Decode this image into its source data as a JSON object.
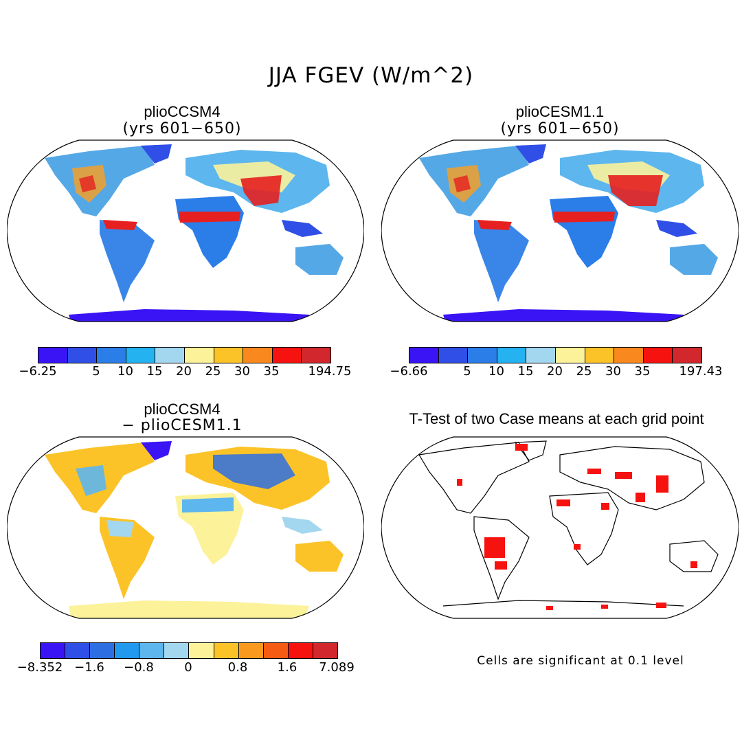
{
  "title": "JJA FGEV (W/m^2)",
  "panels": {
    "p1": {
      "title": "plioCCSM4",
      "subtitle": "(yrs 601−650)"
    },
    "p2": {
      "title": "plioCESM1.1",
      "subtitle": "(yrs 601−650)"
    },
    "p3": {
      "title": "plioCCSM4",
      "subtitle": "− plioCESM1.1"
    },
    "p4": {
      "title": "T-Test of two Case means at each grid point",
      "subtitle": ""
    }
  },
  "colorbars": {
    "cb1": {
      "colors": [
        "#3b14f5",
        "#2f4fe6",
        "#2b7de8",
        "#24b2f0",
        "#a3d7ef",
        "#fbf29a",
        "#fcc328",
        "#f9891e",
        "#f5120f",
        "#d2272c"
      ],
      "labels": [
        "−6.25",
        "5",
        "10",
        "15",
        "20",
        "25",
        "30",
        "35",
        "194.75"
      ]
    },
    "cb2": {
      "colors": [
        "#3b14f5",
        "#2f4fe6",
        "#2b7de8",
        "#24b2f0",
        "#a3d7ef",
        "#fbf29a",
        "#fcc328",
        "#f9891e",
        "#f5120f",
        "#d2272c"
      ],
      "labels": [
        "−6.66",
        "5",
        "10",
        "15",
        "20",
        "25",
        "30",
        "35",
        "197.43"
      ]
    },
    "cb3": {
      "colors": [
        "#3b14f5",
        "#2f4fe6",
        "#2d6fe3",
        "#2199ef",
        "#5db6ee",
        "#a3d7ef",
        "#fbf29a",
        "#fcc328",
        "#f99a1e",
        "#f55b12",
        "#f5120f",
        "#d2272c"
      ],
      "labels": [
        "−8.352",
        "−1.6",
        "−0.8",
        "0",
        "0.8",
        "1.6",
        "7.089"
      ]
    }
  },
  "significance_note": "Cells are significant at 0.1 level"
}
